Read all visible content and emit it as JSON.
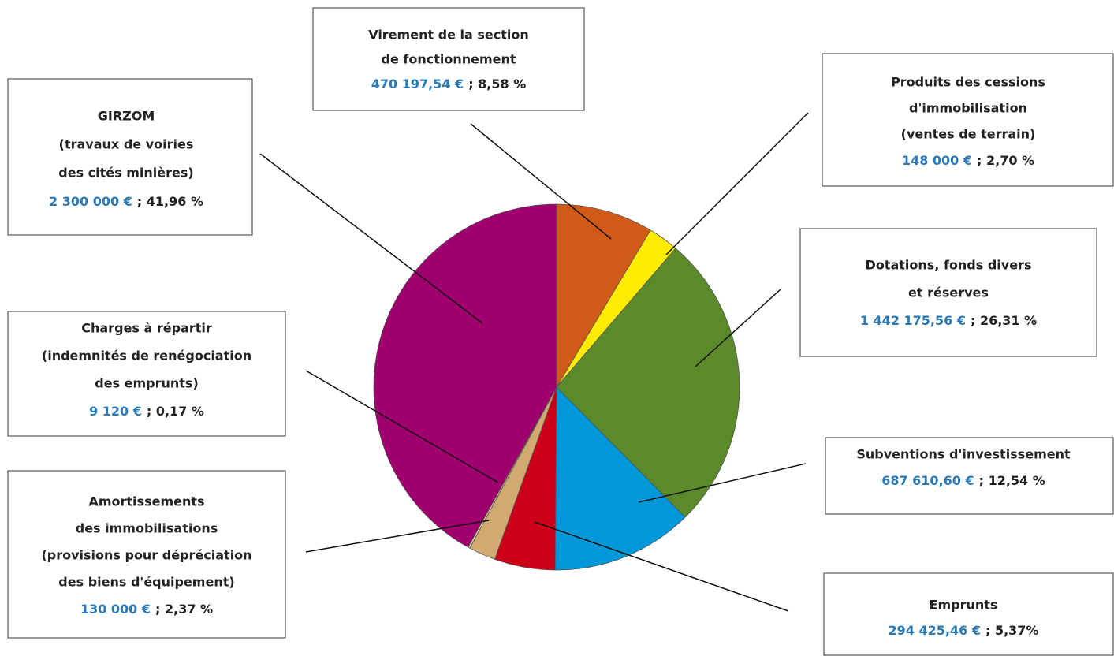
{
  "chart_data": {
    "type": "pie",
    "labels": [
      [
        "Virement de la section",
        "de fonctionnement"
      ],
      [
        "Produits des cessions",
        "d'immobilisation",
        "(ventes de terrain)"
      ],
      [
        "Dotations, fonds divers",
        "et réserves"
      ],
      [
        "Subventions d'investissement"
      ],
      [
        "Emprunts"
      ],
      [
        "Amortissements",
        "des immobilisations",
        "(provisions pour dépréciation",
        "des biens d'équipement)"
      ],
      [
        "Charges à répartir",
        "(indemnités de renégociation",
        "des emprunts)"
      ],
      [
        "GIRZOM",
        "(travaux de voiries",
        "des cités minières)"
      ]
    ],
    "amount_labels": [
      "470 197,54 €",
      "148 000 €",
      "1 442 175,56 €",
      "687 610,60 €",
      "294 425,46 €",
      "130 000 €",
      "9 120 €",
      "2 300 000 €"
    ],
    "values": [
      8.58,
      2.7,
      26.31,
      12.54,
      5.37,
      2.37,
      0.17,
      41.96
    ],
    "value_labels": [
      "; 8,58 %",
      "; 2,70 %",
      "; 26,31 %",
      "; 12,54 %",
      "; 5,37%",
      "; 2,37 %",
      "; 0,17 %",
      "; 41,96 %"
    ],
    "colors": [
      "#d05a17",
      "#ffec00",
      "#5a8a2a",
      "#0098d8",
      "#cc0018",
      "#d0aa70",
      "#e6cf9c",
      "#a0006e"
    ]
  }
}
